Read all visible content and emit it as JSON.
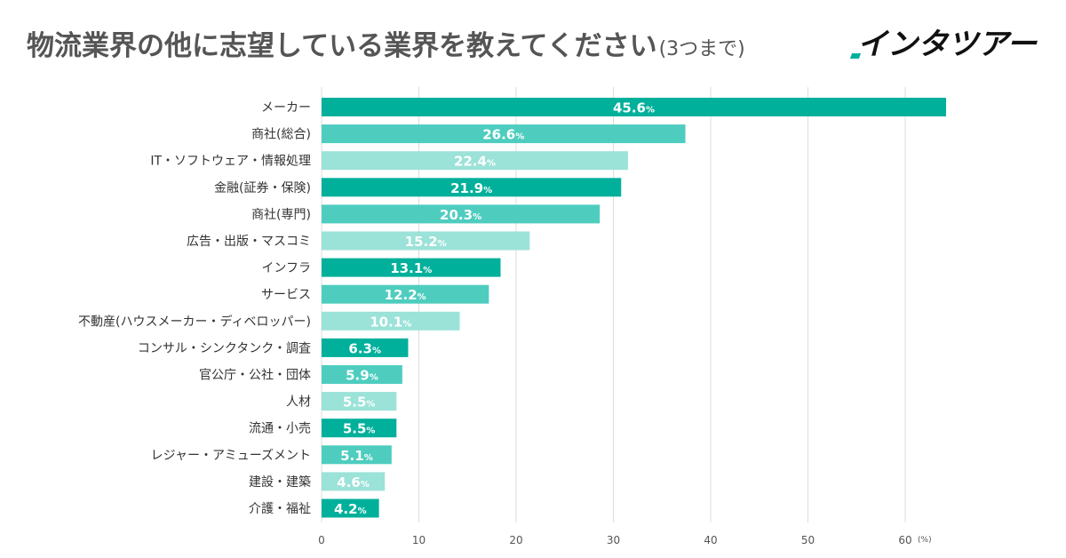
{
  "header": {
    "title": "物流業界の他に志望している業界を教えてください",
    "subtitle": "(3つまで)",
    "logo": "インタツアー"
  },
  "colors": {
    "dark": "#00b09b",
    "mid": "#4ecdbf",
    "light": "#9be2d8",
    "logo_accent": "#00b09b"
  },
  "chart_data": {
    "type": "bar",
    "orientation": "horizontal",
    "title": "物流業界の他に志望している業界を教えてください(3つまで)",
    "xlabel": "",
    "unit_label": "(%)",
    "value_suffix": "%",
    "xlim": [
      0,
      70
    ],
    "xticks": [
      0,
      10,
      20,
      30,
      40,
      50,
      60
    ],
    "grid": true,
    "categories": [
      "メーカー",
      "商社(総合)",
      "IT・ソフトウェア・情報処理",
      "金融(証券・保険)",
      "商社(専門)",
      "広告・出版・マスコミ",
      "インフラ",
      "サービス",
      "不動産(ハウスメーカー・ディベロッパー)",
      "コンサル・シンクタンク・調査",
      "官公庁・公社・団体",
      "人材",
      "流通・小売",
      "レジャー・アミューズメント",
      "建設・建築",
      "介護・福祉"
    ],
    "values": [
      45.6,
      26.6,
      22.4,
      21.9,
      20.3,
      15.2,
      13.1,
      12.2,
      10.1,
      6.3,
      5.9,
      5.5,
      5.5,
      5.1,
      4.6,
      4.2
    ],
    "bar_lengths": [
      64.2,
      37.4,
      31.5,
      30.8,
      28.6,
      21.4,
      18.4,
      17.2,
      14.2,
      8.9,
      8.3,
      7.7,
      7.7,
      7.2,
      6.5,
      5.9
    ]
  }
}
